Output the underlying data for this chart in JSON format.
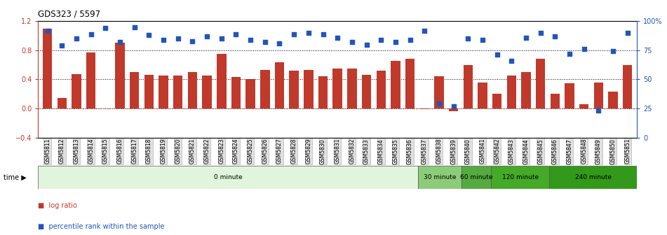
{
  "title": "GDS323 / 5597",
  "samples": [
    "GSM5811",
    "GSM5812",
    "GSM5813",
    "GSM5814",
    "GSM5815",
    "GSM5816",
    "GSM5817",
    "GSM5818",
    "GSM5819",
    "GSM5820",
    "GSM5821",
    "GSM5822",
    "GSM5823",
    "GSM5824",
    "GSM5825",
    "GSM5826",
    "GSM5827",
    "GSM5828",
    "GSM5829",
    "GSM5830",
    "GSM5831",
    "GSM5832",
    "GSM5833",
    "GSM5834",
    "GSM5835",
    "GSM5836",
    "GSM5837",
    "GSM5838",
    "GSM5839",
    "GSM5840",
    "GSM5841",
    "GSM5842",
    "GSM5843",
    "GSM5844",
    "GSM5845",
    "GSM5846",
    "GSM5847",
    "GSM5848",
    "GSM5849",
    "GSM5850",
    "GSM5851"
  ],
  "log_ratio": [
    1.1,
    0.14,
    0.47,
    0.77,
    0.0,
    0.9,
    0.5,
    0.46,
    0.45,
    0.45,
    0.5,
    0.45,
    0.75,
    0.43,
    0.4,
    0.53,
    0.63,
    0.52,
    0.53,
    0.44,
    0.55,
    0.55,
    0.46,
    0.52,
    0.65,
    0.68,
    -0.01,
    0.44,
    -0.04,
    0.6,
    0.36,
    0.2,
    0.45,
    0.5,
    0.68,
    0.2,
    0.35,
    0.06,
    0.36,
    0.23,
    0.6
  ],
  "percentile": [
    92,
    79,
    85,
    89,
    94,
    82,
    95,
    88,
    84,
    85,
    83,
    87,
    85,
    89,
    84,
    82,
    81,
    89,
    90,
    89,
    86,
    82,
    80,
    84,
    82,
    84,
    92,
    29,
    27,
    85,
    84,
    71,
    66,
    86,
    90,
    87,
    72,
    76,
    23,
    74,
    90
  ],
  "bar_color": "#C0392B",
  "dot_color": "#2255BB",
  "ylim_left": [
    -0.4,
    1.2
  ],
  "ylim_right": [
    0,
    100
  ],
  "time_groups": [
    {
      "label": "0 minute",
      "start": 0,
      "end": 26,
      "color": "#e0f5dc"
    },
    {
      "label": "30 minute",
      "start": 26,
      "end": 29,
      "color": "#8ccc78"
    },
    {
      "label": "60 minute",
      "start": 29,
      "end": 31,
      "color": "#55aa40"
    },
    {
      "label": "120 minute",
      "start": 31,
      "end": 35,
      "color": "#44aa28"
    },
    {
      "label": "240 minute",
      "start": 35,
      "end": 41,
      "color": "#33991a"
    }
  ],
  "legend_log_ratio": "log ratio",
  "legend_percentile": "percentile rank within the sample"
}
